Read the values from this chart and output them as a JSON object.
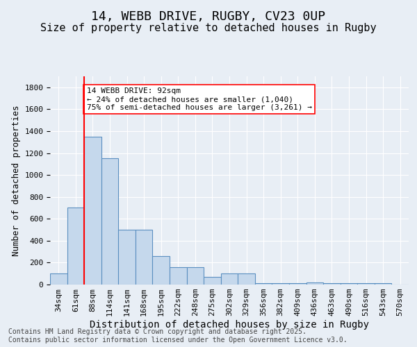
{
  "title_line1": "14, WEBB DRIVE, RUGBY, CV23 0UP",
  "title_line2": "Size of property relative to detached houses in Rugby",
  "xlabel": "Distribution of detached houses by size in Rugby",
  "ylabel": "Number of detached properties",
  "categories": [
    "34sqm",
    "61sqm",
    "88sqm",
    "114sqm",
    "141sqm",
    "168sqm",
    "195sqm",
    "222sqm",
    "248sqm",
    "275sqm",
    "302sqm",
    "329sqm",
    "356sqm",
    "382sqm",
    "409sqm",
    "436sqm",
    "463sqm",
    "490sqm",
    "516sqm",
    "543sqm",
    "570sqm"
  ],
  "bar_values": [
    100,
    700,
    1350,
    1150,
    500,
    500,
    260,
    160,
    160,
    70,
    100,
    100,
    10,
    10,
    10,
    20,
    10,
    10,
    10,
    10,
    0
  ],
  "bar_color": "#c5d8ec",
  "bar_edge_color": "#5a8fc0",
  "vline_color": "red",
  "annotation_text": "14 WEBB DRIVE: 92sqm\n← 24% of detached houses are smaller (1,040)\n75% of semi-detached houses are larger (3,261) →",
  "annotation_box_color": "white",
  "annotation_box_edge": "red",
  "ylim": [
    0,
    1900
  ],
  "yticks": [
    0,
    200,
    400,
    600,
    800,
    1000,
    1200,
    1400,
    1600,
    1800
  ],
  "background_color": "#e8eef5",
  "plot_bg_color": "#e8eef5",
  "footer_text": "Contains HM Land Registry data © Crown copyright and database right 2025.\nContains public sector information licensed under the Open Government Licence v3.0.",
  "title_fontsize": 13,
  "subtitle_fontsize": 11,
  "axis_label_fontsize": 9,
  "tick_fontsize": 8,
  "annotation_fontsize": 8,
  "footer_fontsize": 7
}
